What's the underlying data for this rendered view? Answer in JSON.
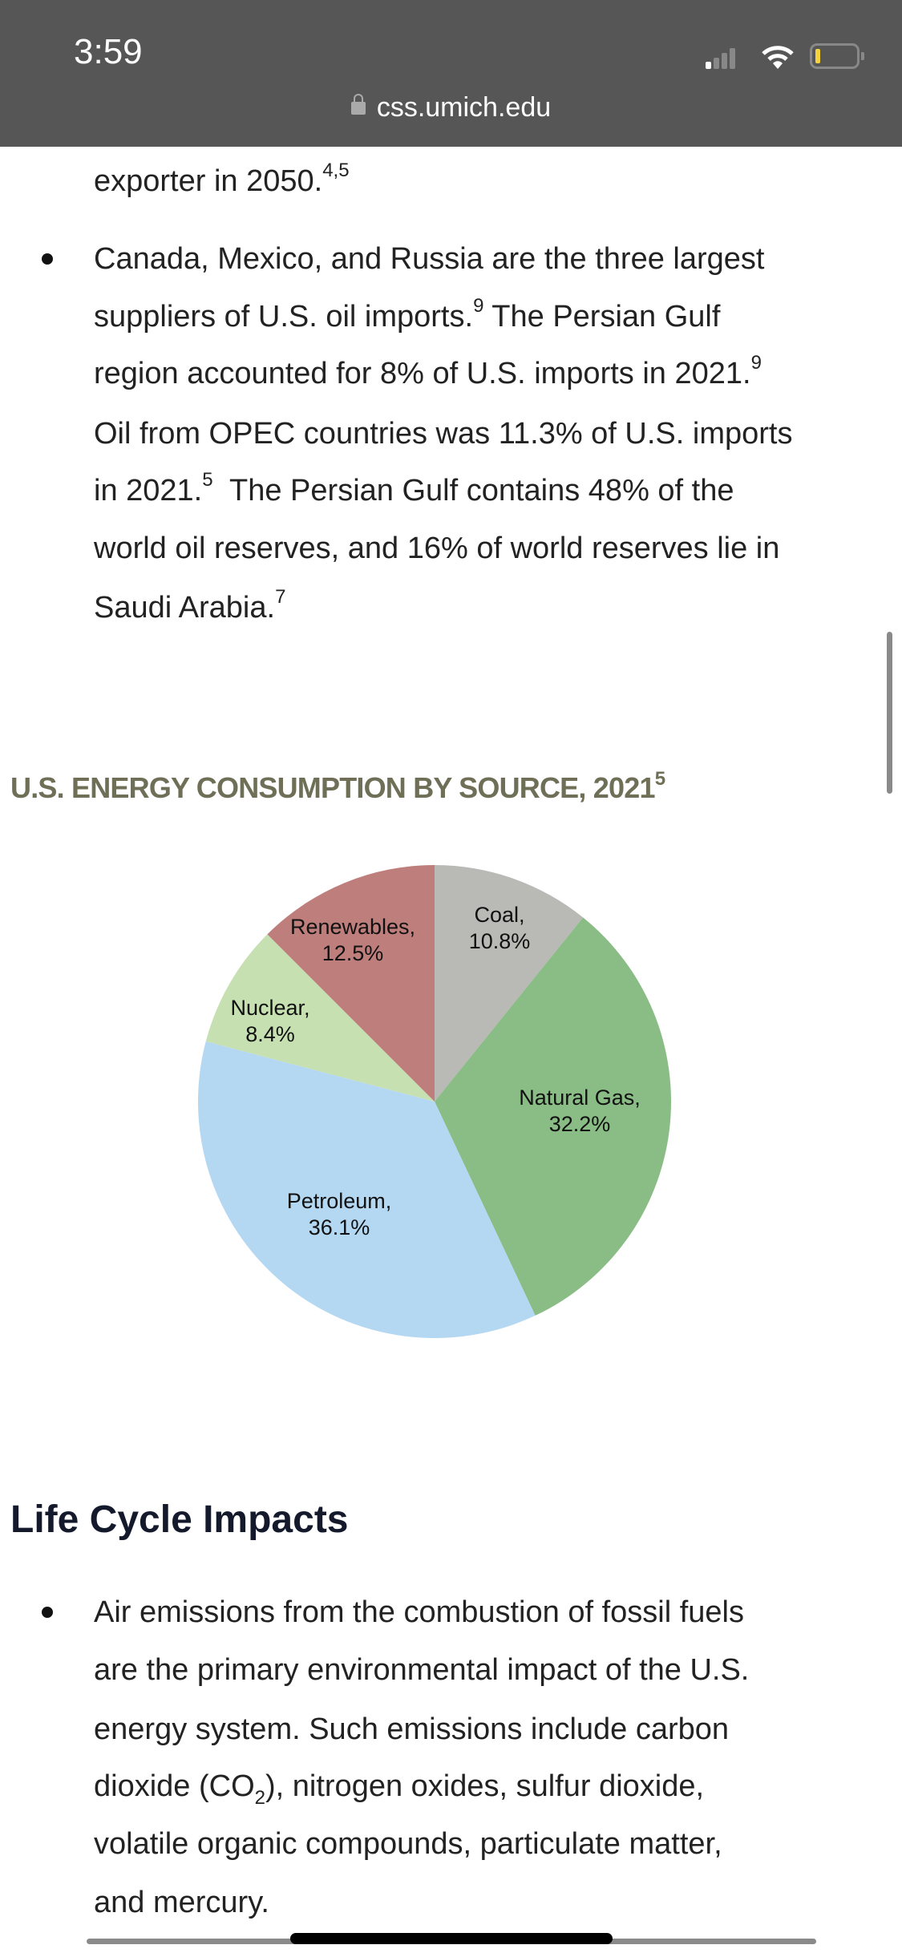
{
  "status_bar": {
    "time": "3:59",
    "url": "css.umich.edu",
    "icons": [
      "signal-icon",
      "wifi-icon",
      "battery-icon",
      "lock-icon"
    ]
  },
  "intro_lines": [
    [
      {
        "t": "exporter in 2050."
      },
      {
        "sup": "4,5"
      }
    ]
  ],
  "bullet1_lines": [
    [
      {
        "t": "Canada, Mexico, and Russia are the three largest"
      }
    ],
    [
      {
        "t": "suppliers of U.S. oil imports."
      },
      {
        "sup": "9"
      },
      {
        "t": " The Persian Gulf"
      }
    ],
    [
      {
        "t": "region accounted for 8% of U.S. imports in 2021."
      },
      {
        "sup": "9"
      }
    ],
    [
      {
        "t": "Oil from OPEC countries was 11.3% of U.S. imports"
      }
    ],
    [
      {
        "t": "in 2021."
      },
      {
        "sup": "5"
      },
      {
        "t": "  The Persian Gulf contains 48% of the"
      }
    ],
    [
      {
        "t": "world oil reserves, and 16% of world reserves lie in"
      }
    ],
    [
      {
        "t": "Saudi Arabia."
      },
      {
        "sup": "7"
      }
    ]
  ],
  "chart_heading": {
    "text": "U.S. ENERGY CONSUMPTION BY SOURCE, 2021",
    "sup": "5"
  },
  "chart_data": {
    "type": "pie",
    "title": "U.S. ENERGY CONSUMPTION BY SOURCE, 2021",
    "start": "12 o'clock, clockwise",
    "slices": [
      {
        "label": "Coal,",
        "value_label": "10.8%",
        "value": 10.8,
        "color": "#b9b9b5"
      },
      {
        "label": "Natural Gas,",
        "value_label": "32.2%",
        "value": 32.2,
        "color": "#89bd85"
      },
      {
        "label": "Petroleum,",
        "value_label": "36.1%",
        "value": 36.1,
        "color": "#b4d8f2"
      },
      {
        "label": "Nuclear,",
        "value_label": "8.4%",
        "value": 8.4,
        "color": "#c6e0b1"
      },
      {
        "label": "Renewables,",
        "value_label": "12.5%",
        "value": 12.5,
        "color": "#be7e7b"
      }
    ]
  },
  "section_title": "Life Cycle Impacts",
  "bullet2_lines": [
    [
      {
        "t": "Air emissions from the combustion of fossil fuels"
      }
    ],
    [
      {
        "t": "are the primary environmental impact of the U.S."
      }
    ],
    [
      {
        "t": "energy system. Such emissions include carbon"
      }
    ],
    [
      {
        "t": "dioxide (CO"
      },
      {
        "sub": "2"
      },
      {
        "t": "), nitrogen oxides, sulfur dioxide,"
      }
    ],
    [
      {
        "t": "volatile organic compounds, particulate matter,"
      }
    ],
    [
      {
        "t": "and mercury."
      }
    ]
  ]
}
